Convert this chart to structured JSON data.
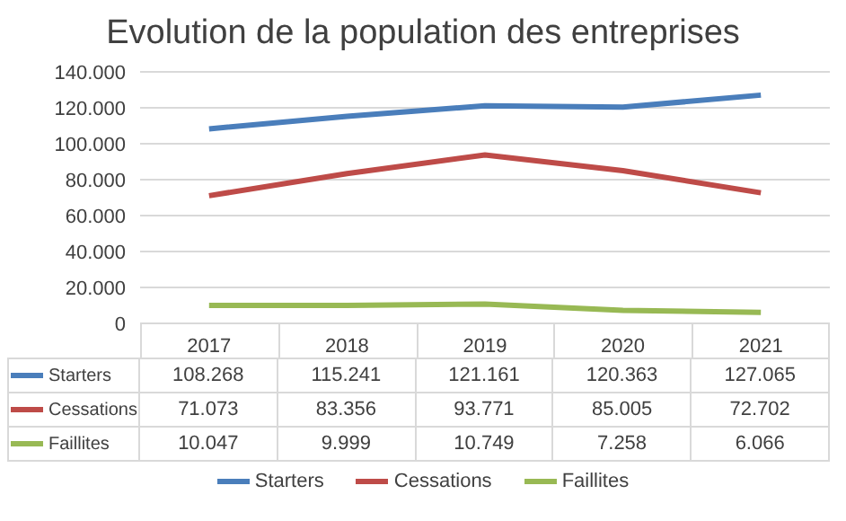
{
  "chart_data": {
    "type": "line",
    "title": "Evolution de la population des entreprises",
    "categories": [
      "2017",
      "2018",
      "2019",
      "2020",
      "2021"
    ],
    "series": [
      {
        "name": "Starters",
        "color": "#4a7ebb",
        "values": [
          108268,
          115241,
          121161,
          120363,
          127065
        ],
        "value_labels": [
          "108.268",
          "115.241",
          "121.161",
          "120.363",
          "127.065"
        ]
      },
      {
        "name": "Cessations",
        "color": "#be4b48",
        "values": [
          71073,
          83356,
          93771,
          85005,
          72702
        ],
        "value_labels": [
          "71.073",
          "83.356",
          "93.771",
          "85.005",
          "72.702"
        ]
      },
      {
        "name": "Faillites",
        "color": "#98b954",
        "values": [
          10047,
          9999,
          10749,
          7258,
          6066
        ],
        "value_labels": [
          "10.047",
          "9.999",
          "10.749",
          "7.258",
          "6.066"
        ]
      }
    ],
    "ylim": [
      0,
      140000
    ],
    "yticks": [
      {
        "value": 0,
        "label": "0"
      },
      {
        "value": 20000,
        "label": "20.000"
      },
      {
        "value": 40000,
        "label": "40.000"
      },
      {
        "value": 60000,
        "label": "60.000"
      },
      {
        "value": 80000,
        "label": "80.000"
      },
      {
        "value": 100000,
        "label": "100.000"
      },
      {
        "value": 120000,
        "label": "120.000"
      },
      {
        "value": 140000,
        "label": "140.000"
      }
    ],
    "grid": "y",
    "legend": "bottom",
    "marker": "none",
    "line_style": "solid"
  }
}
